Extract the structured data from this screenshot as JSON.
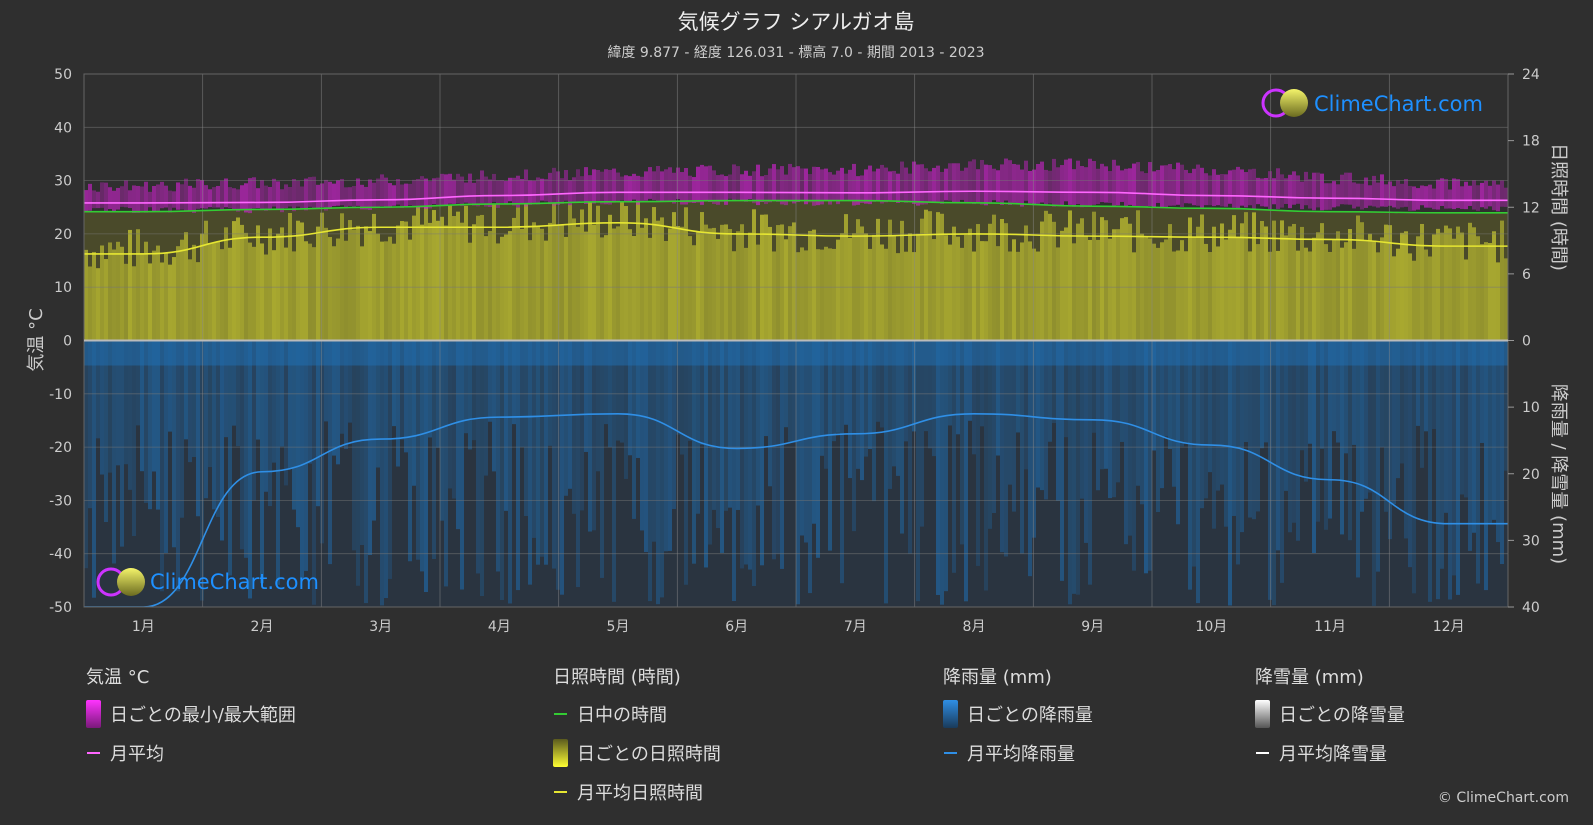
{
  "chart_data": {
    "type": "line",
    "title": "気候グラフ シアルガオ島",
    "subtitle": "緯度 9.877 - 経度 126.031 - 標高 7.0 - 期間 2013 - 2023",
    "categories": [
      "1月",
      "2月",
      "3月",
      "4月",
      "5月",
      "6月",
      "7月",
      "8月",
      "9月",
      "10月",
      "11月",
      "12月"
    ],
    "axes": {
      "temperature": {
        "label": "気温 °C",
        "range": [
          -50,
          50
        ],
        "ticks": [
          "50",
          "40",
          "30",
          "20",
          "10",
          "0",
          "-10",
          "-20",
          "-30",
          "-40",
          "-50"
        ]
      },
      "sunshine": {
        "label": "日照時間 (時間)",
        "range": [
          0,
          24
        ],
        "ticks": [
          "24",
          "18",
          "12",
          "6",
          "0"
        ]
      },
      "precipitation": {
        "label": "降雨量 / 降雪量 (mm)",
        "range": [
          0,
          40
        ],
        "ticks": [
          "10",
          "20",
          "30",
          "40"
        ]
      }
    },
    "series": [
      {
        "name": "日中の時間",
        "axis": "sunshine",
        "color": "#33cc33",
        "values": [
          11.6,
          11.8,
          12.0,
          12.3,
          12.5,
          12.6,
          12.6,
          12.4,
          12.1,
          11.9,
          11.6,
          11.5
        ]
      },
      {
        "name": "月平均日照時間",
        "axis": "sunshine",
        "color": "#e6e632",
        "values": [
          7.8,
          9.3,
          10.2,
          10.2,
          10.6,
          9.6,
          9.4,
          9.6,
          9.4,
          9.3,
          9.1,
          8.5
        ]
      },
      {
        "name": "月平均",
        "axis": "temperature",
        "color": "#ff66ff",
        "values": [
          25.8,
          25.9,
          26.4,
          27.2,
          27.8,
          27.8,
          27.7,
          28.0,
          27.8,
          27.2,
          26.7,
          26.3
        ]
      },
      {
        "name": "月平均降雨量",
        "axis": "precipitation",
        "color": "#2f8fe6",
        "values": [
          40.0,
          19.7,
          14.8,
          11.5,
          11.0,
          16.2,
          14.0,
          11.0,
          11.9,
          15.7,
          20.9,
          27.5
        ]
      }
    ],
    "temperature_range": {
      "min": [
        24.5,
        24.5,
        25.0,
        25.5,
        26.0,
        26.0,
        25.8,
        25.8,
        25.5,
        25.2,
        25.0,
        24.8
      ],
      "max": [
        29.0,
        29.5,
        30.0,
        31.0,
        31.5,
        32.0,
        32.0,
        33.0,
        33.0,
        32.0,
        30.5,
        29.5
      ]
    },
    "daily_sunshine_color": "#c8c832",
    "daily_rain_color": "#1f6fb3",
    "grid": true
  },
  "legend": {
    "groups": [
      {
        "heading": "気温 °C",
        "items": [
          {
            "label": "日ごとの最小/最大範囲",
            "swatch": "range-magenta"
          },
          {
            "label": "月平均",
            "swatch": "line-magenta"
          }
        ]
      },
      {
        "heading": "日照時間 (時間)",
        "items": [
          {
            "label": "日中の時間",
            "swatch": "line-green"
          },
          {
            "label": "日ごとの日照時間",
            "swatch": "range-yellow"
          },
          {
            "label": "月平均日照時間",
            "swatch": "line-yellow"
          }
        ]
      },
      {
        "heading": "降雨量 (mm)",
        "items": [
          {
            "label": "日ごとの降雨量",
            "swatch": "range-blue"
          },
          {
            "label": "月平均降雨量",
            "swatch": "line-blue"
          }
        ]
      },
      {
        "heading": "降雪量 (mm)",
        "items": [
          {
            "label": "日ごとの降雪量",
            "swatch": "range-white"
          },
          {
            "label": "月平均降雪量",
            "swatch": "line-white"
          }
        ]
      }
    ]
  },
  "branding": {
    "name": "ClimeChart.com",
    "copyright": "© ClimeChart.com"
  }
}
